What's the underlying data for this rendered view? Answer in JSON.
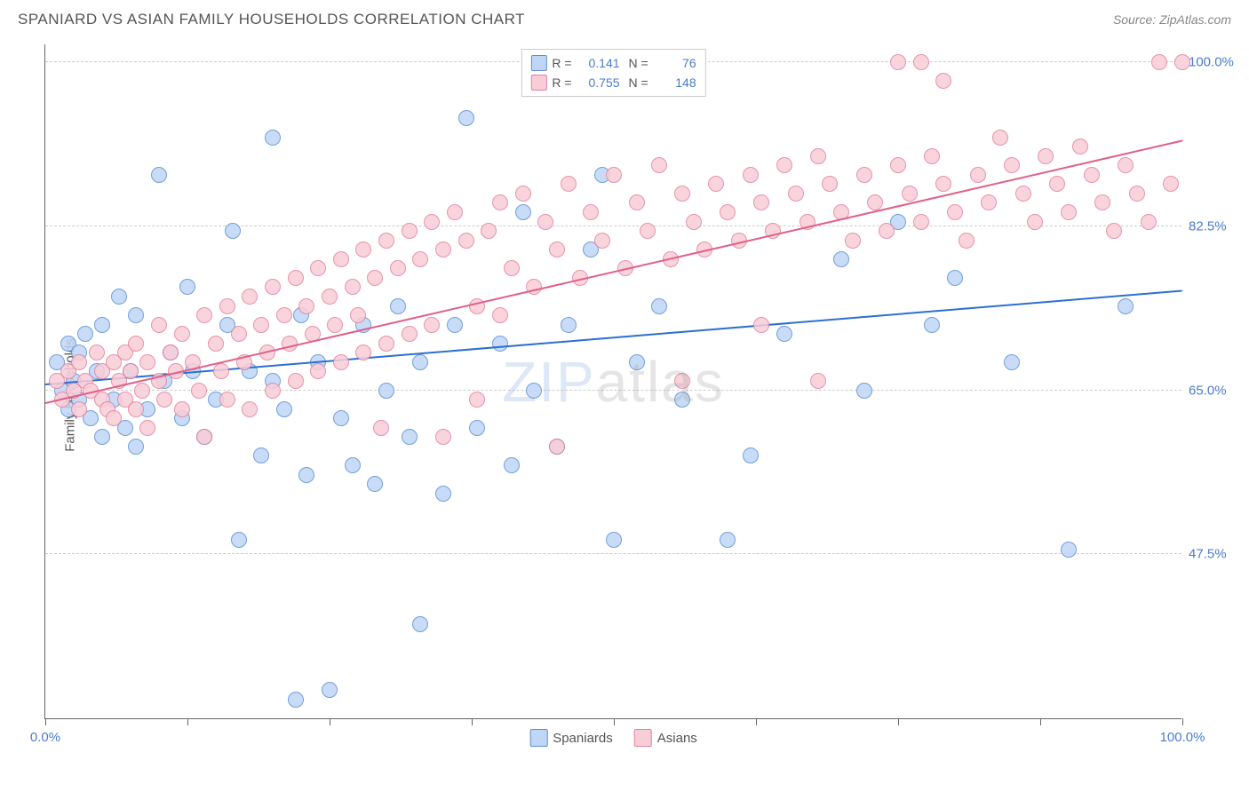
{
  "header": {
    "title": "SPANIARD VS ASIAN FAMILY HOUSEHOLDS CORRELATION CHART",
    "source": "Source: ZipAtlas.com"
  },
  "chart": {
    "type": "scatter",
    "y_axis_title": "Family Households",
    "background_color": "#ffffff",
    "grid_color": "#cccccc",
    "axis_color": "#666666",
    "label_color": "#4a7bd0",
    "text_color": "#555555",
    "x_range": [
      0,
      100
    ],
    "y_range": [
      30,
      102
    ],
    "y_ticks": [
      47.5,
      65.0,
      82.5,
      100.0
    ],
    "y_tick_labels": [
      "47.5%",
      "65.0%",
      "82.5%",
      "100.0%"
    ],
    "x_ticks": [
      0,
      12.5,
      25,
      37.5,
      50,
      62.5,
      75,
      87.5,
      100
    ],
    "x_tick_labels": {
      "0": "0.0%",
      "100": "100.0%"
    },
    "watermark": {
      "part1": "ZIP",
      "part2": "atlas"
    },
    "series": [
      {
        "name": "Spaniards",
        "fill_color": "#bfd6f6",
        "stroke_color": "#5a8fd6",
        "trend_fill": "#2c6fd1",
        "R": "0.141",
        "N": "76",
        "trend": {
          "x1": 0,
          "y1": 65.5,
          "x2": 100,
          "y2": 75.5
        },
        "points": [
          [
            1,
            68
          ],
          [
            1.5,
            65
          ],
          [
            2,
            70
          ],
          [
            2,
            63
          ],
          [
            2.5,
            66
          ],
          [
            3,
            64
          ],
          [
            3,
            69
          ],
          [
            3.5,
            71
          ],
          [
            4,
            62
          ],
          [
            4.5,
            67
          ],
          [
            5,
            72
          ],
          [
            5,
            60
          ],
          [
            6,
            64
          ],
          [
            6.5,
            75
          ],
          [
            7,
            61
          ],
          [
            7.5,
            67
          ],
          [
            8,
            73
          ],
          [
            8,
            59
          ],
          [
            9,
            63
          ],
          [
            10,
            88
          ],
          [
            10.5,
            66
          ],
          [
            11,
            69
          ],
          [
            12,
            62
          ],
          [
            12.5,
            76
          ],
          [
            13,
            67
          ],
          [
            14,
            60
          ],
          [
            15,
            64
          ],
          [
            16,
            72
          ],
          [
            16.5,
            82
          ],
          [
            17,
            49
          ],
          [
            18,
            67
          ],
          [
            19,
            58
          ],
          [
            20,
            92
          ],
          [
            20,
            66
          ],
          [
            21,
            63
          ],
          [
            22,
            32
          ],
          [
            22.5,
            73
          ],
          [
            23,
            56
          ],
          [
            24,
            68
          ],
          [
            25,
            33
          ],
          [
            26,
            62
          ],
          [
            27,
            57
          ],
          [
            28,
            72
          ],
          [
            29,
            55
          ],
          [
            30,
            65
          ],
          [
            31,
            74
          ],
          [
            32,
            60
          ],
          [
            33,
            40
          ],
          [
            33,
            68
          ],
          [
            35,
            54
          ],
          [
            36,
            72
          ],
          [
            37,
            94
          ],
          [
            38,
            61
          ],
          [
            40,
            70
          ],
          [
            41,
            57
          ],
          [
            42,
            84
          ],
          [
            43,
            65
          ],
          [
            45,
            59
          ],
          [
            46,
            72
          ],
          [
            48,
            80
          ],
          [
            49,
            88
          ],
          [
            50,
            49
          ],
          [
            52,
            68
          ],
          [
            54,
            74
          ],
          [
            56,
            64
          ],
          [
            60,
            49
          ],
          [
            62,
            58
          ],
          [
            65,
            71
          ],
          [
            70,
            79
          ],
          [
            72,
            65
          ],
          [
            75,
            83
          ],
          [
            78,
            72
          ],
          [
            80,
            77
          ],
          [
            85,
            68
          ],
          [
            90,
            48
          ],
          [
            95,
            74
          ]
        ]
      },
      {
        "name": "Asians",
        "fill_color": "#f9cdd8",
        "stroke_color": "#e3809d",
        "trend_fill": "#e06088",
        "R": "0.755",
        "N": "148",
        "trend": {
          "x1": 0,
          "y1": 63.5,
          "x2": 100,
          "y2": 91.5
        },
        "points": [
          [
            1,
            66
          ],
          [
            1.5,
            64
          ],
          [
            2,
            67
          ],
          [
            2.5,
            65
          ],
          [
            3,
            68
          ],
          [
            3,
            63
          ],
          [
            3.5,
            66
          ],
          [
            4,
            65
          ],
          [
            4.5,
            69
          ],
          [
            5,
            64
          ],
          [
            5,
            67
          ],
          [
            5.5,
            63
          ],
          [
            6,
            68
          ],
          [
            6,
            62
          ],
          [
            6.5,
            66
          ],
          [
            7,
            69
          ],
          [
            7,
            64
          ],
          [
            7.5,
            67
          ],
          [
            8,
            70
          ],
          [
            8,
            63
          ],
          [
            8.5,
            65
          ],
          [
            9,
            68
          ],
          [
            9,
            61
          ],
          [
            10,
            72
          ],
          [
            10,
            66
          ],
          [
            10.5,
            64
          ],
          [
            11,
            69
          ],
          [
            11.5,
            67
          ],
          [
            12,
            71
          ],
          [
            12,
            63
          ],
          [
            13,
            68
          ],
          [
            13.5,
            65
          ],
          [
            14,
            73
          ],
          [
            14,
            60
          ],
          [
            15,
            70
          ],
          [
            15.5,
            67
          ],
          [
            16,
            74
          ],
          [
            16,
            64
          ],
          [
            17,
            71
          ],
          [
            17.5,
            68
          ],
          [
            18,
            75
          ],
          [
            18,
            63
          ],
          [
            19,
            72
          ],
          [
            19.5,
            69
          ],
          [
            20,
            76
          ],
          [
            20,
            65
          ],
          [
            21,
            73
          ],
          [
            21.5,
            70
          ],
          [
            22,
            77
          ],
          [
            22,
            66
          ],
          [
            23,
            74
          ],
          [
            23.5,
            71
          ],
          [
            24,
            78
          ],
          [
            24,
            67
          ],
          [
            25,
            75
          ],
          [
            25.5,
            72
          ],
          [
            26,
            79
          ],
          [
            26,
            68
          ],
          [
            27,
            76
          ],
          [
            27.5,
            73
          ],
          [
            28,
            80
          ],
          [
            28,
            69
          ],
          [
            29,
            77
          ],
          [
            29.5,
            61
          ],
          [
            30,
            81
          ],
          [
            30,
            70
          ],
          [
            31,
            78
          ],
          [
            32,
            82
          ],
          [
            32,
            71
          ],
          [
            33,
            79
          ],
          [
            34,
            83
          ],
          [
            34,
            72
          ],
          [
            35,
            80
          ],
          [
            35,
            60
          ],
          [
            36,
            84
          ],
          [
            37,
            81
          ],
          [
            38,
            74
          ],
          [
            38,
            64
          ],
          [
            39,
            82
          ],
          [
            40,
            85
          ],
          [
            40,
            73
          ],
          [
            41,
            78
          ],
          [
            42,
            86
          ],
          [
            43,
            76
          ],
          [
            44,
            83
          ],
          [
            45,
            80
          ],
          [
            45,
            59
          ],
          [
            46,
            87
          ],
          [
            47,
            77
          ],
          [
            48,
            84
          ],
          [
            49,
            81
          ],
          [
            50,
            88
          ],
          [
            51,
            78
          ],
          [
            52,
            85
          ],
          [
            53,
            82
          ],
          [
            54,
            89
          ],
          [
            55,
            79
          ],
          [
            56,
            86
          ],
          [
            56,
            66
          ],
          [
            57,
            83
          ],
          [
            58,
            80
          ],
          [
            59,
            87
          ],
          [
            60,
            84
          ],
          [
            61,
            81
          ],
          [
            62,
            88
          ],
          [
            63,
            85
          ],
          [
            63,
            72
          ],
          [
            64,
            82
          ],
          [
            65,
            89
          ],
          [
            66,
            86
          ],
          [
            67,
            83
          ],
          [
            68,
            90
          ],
          [
            68,
            66
          ],
          [
            69,
            87
          ],
          [
            70,
            84
          ],
          [
            71,
            81
          ],
          [
            72,
            88
          ],
          [
            73,
            85
          ],
          [
            74,
            82
          ],
          [
            75,
            89
          ],
          [
            75,
            100
          ],
          [
            76,
            86
          ],
          [
            77,
            83
          ],
          [
            77,
            100
          ],
          [
            78,
            90
          ],
          [
            79,
            87
          ],
          [
            79,
            98
          ],
          [
            80,
            84
          ],
          [
            81,
            81
          ],
          [
            82,
            88
          ],
          [
            83,
            85
          ],
          [
            84,
            92
          ],
          [
            85,
            89
          ],
          [
            86,
            86
          ],
          [
            87,
            83
          ],
          [
            88,
            90
          ],
          [
            89,
            87
          ],
          [
            90,
            84
          ],
          [
            91,
            91
          ],
          [
            92,
            88
          ],
          [
            93,
            85
          ],
          [
            94,
            82
          ],
          [
            95,
            89
          ],
          [
            96,
            86
          ],
          [
            97,
            83
          ],
          [
            98,
            100
          ],
          [
            99,
            87
          ],
          [
            100,
            100
          ]
        ]
      }
    ],
    "bottom_legend": [
      {
        "label": "Spaniards",
        "fill": "#bfd6f6",
        "stroke": "#5a8fd6"
      },
      {
        "label": "Asians",
        "fill": "#f9cdd8",
        "stroke": "#e3809d"
      }
    ]
  }
}
